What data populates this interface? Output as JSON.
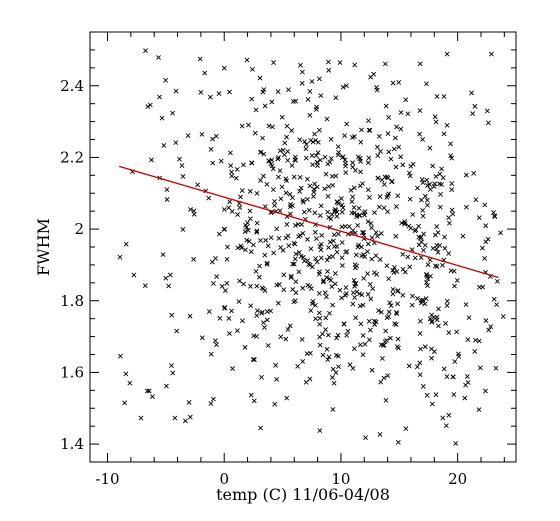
{
  "chart_data": {
    "type": "scatter",
    "title": "",
    "xlabel": "temp (C) 11/06-04/08",
    "ylabel": "FWHM",
    "xlim": [
      -11.5,
      25
    ],
    "ylim": [
      1.35,
      2.55
    ],
    "x_ticks": [
      "-10",
      "0",
      "10",
      "20"
    ],
    "y_ticks": [
      "1.4",
      "1.6",
      "1.8",
      "2",
      "2.2",
      "2.4"
    ],
    "grid": false,
    "legend": "none",
    "marker": "x",
    "colors": {
      "points": "#000000",
      "fit_line": "#cc0000",
      "axes": "#000000"
    },
    "fit_line": {
      "x": [
        -9,
        23.5
      ],
      "y": [
        2.175,
        1.865
      ]
    },
    "point_cloud": {
      "approx_count": 900,
      "x_range": [
        -9,
        24
      ],
      "y_range": [
        1.4,
        2.5
      ],
      "mean_x": 10.5,
      "mean_y": 1.98
    }
  }
}
